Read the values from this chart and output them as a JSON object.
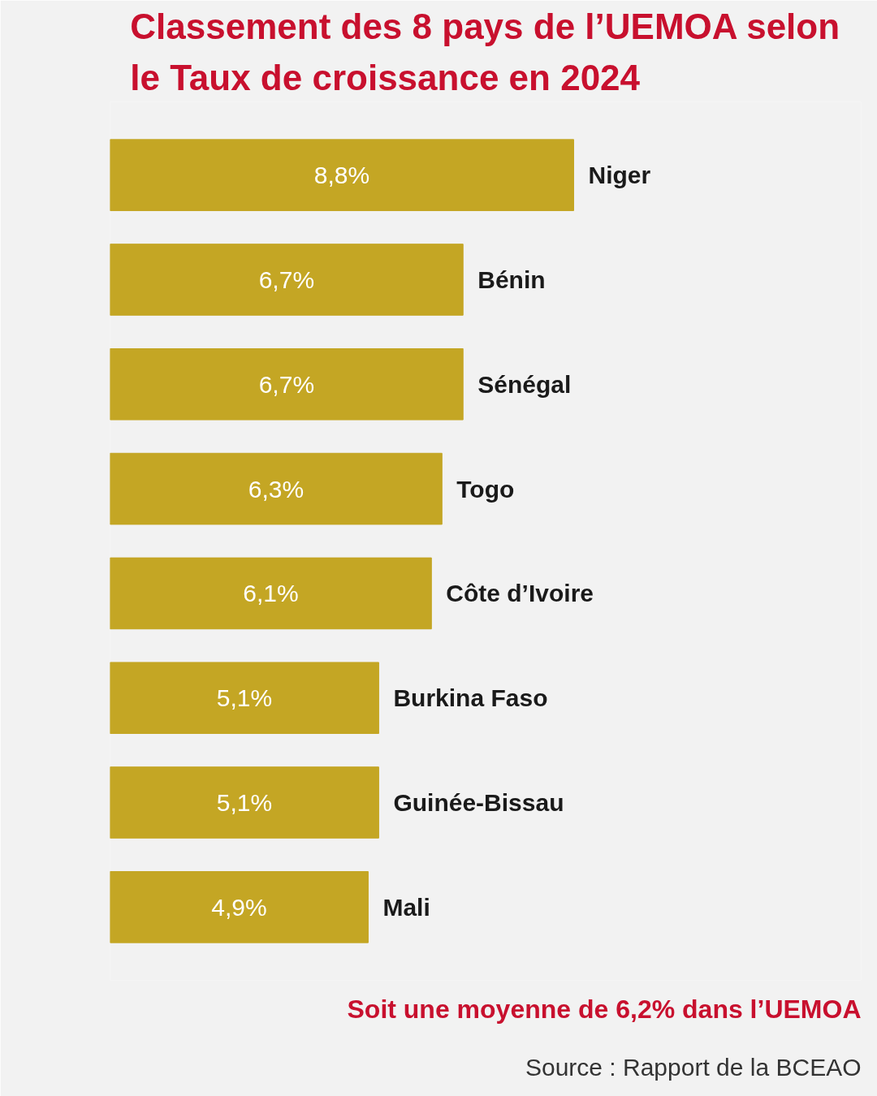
{
  "chart_data": {
    "type": "bar",
    "orientation": "horizontal",
    "title": "Classement des 8 pays de l’UEMOA selon le Taux de croissance en 2024",
    "categories": [
      "Niger",
      "Bénin",
      "Sénégal",
      "Togo",
      "Côte d’Ivoire",
      "Burkina Faso",
      "Guinée-Bissau",
      "Mali"
    ],
    "values": [
      8.8,
      6.7,
      6.7,
      6.3,
      6.1,
      5.1,
      5.1,
      4.9
    ],
    "value_labels": [
      "8,8%",
      "6,7%",
      "6,7%",
      "6,3%",
      "6,1%",
      "5,1%",
      "5,1%",
      "4,9%"
    ],
    "color": "#c4a624",
    "annotations": [
      "Soit une moyenne de 6,2% dans l’UEMOA",
      "Source : Rapport de la BCEAO"
    ]
  }
}
